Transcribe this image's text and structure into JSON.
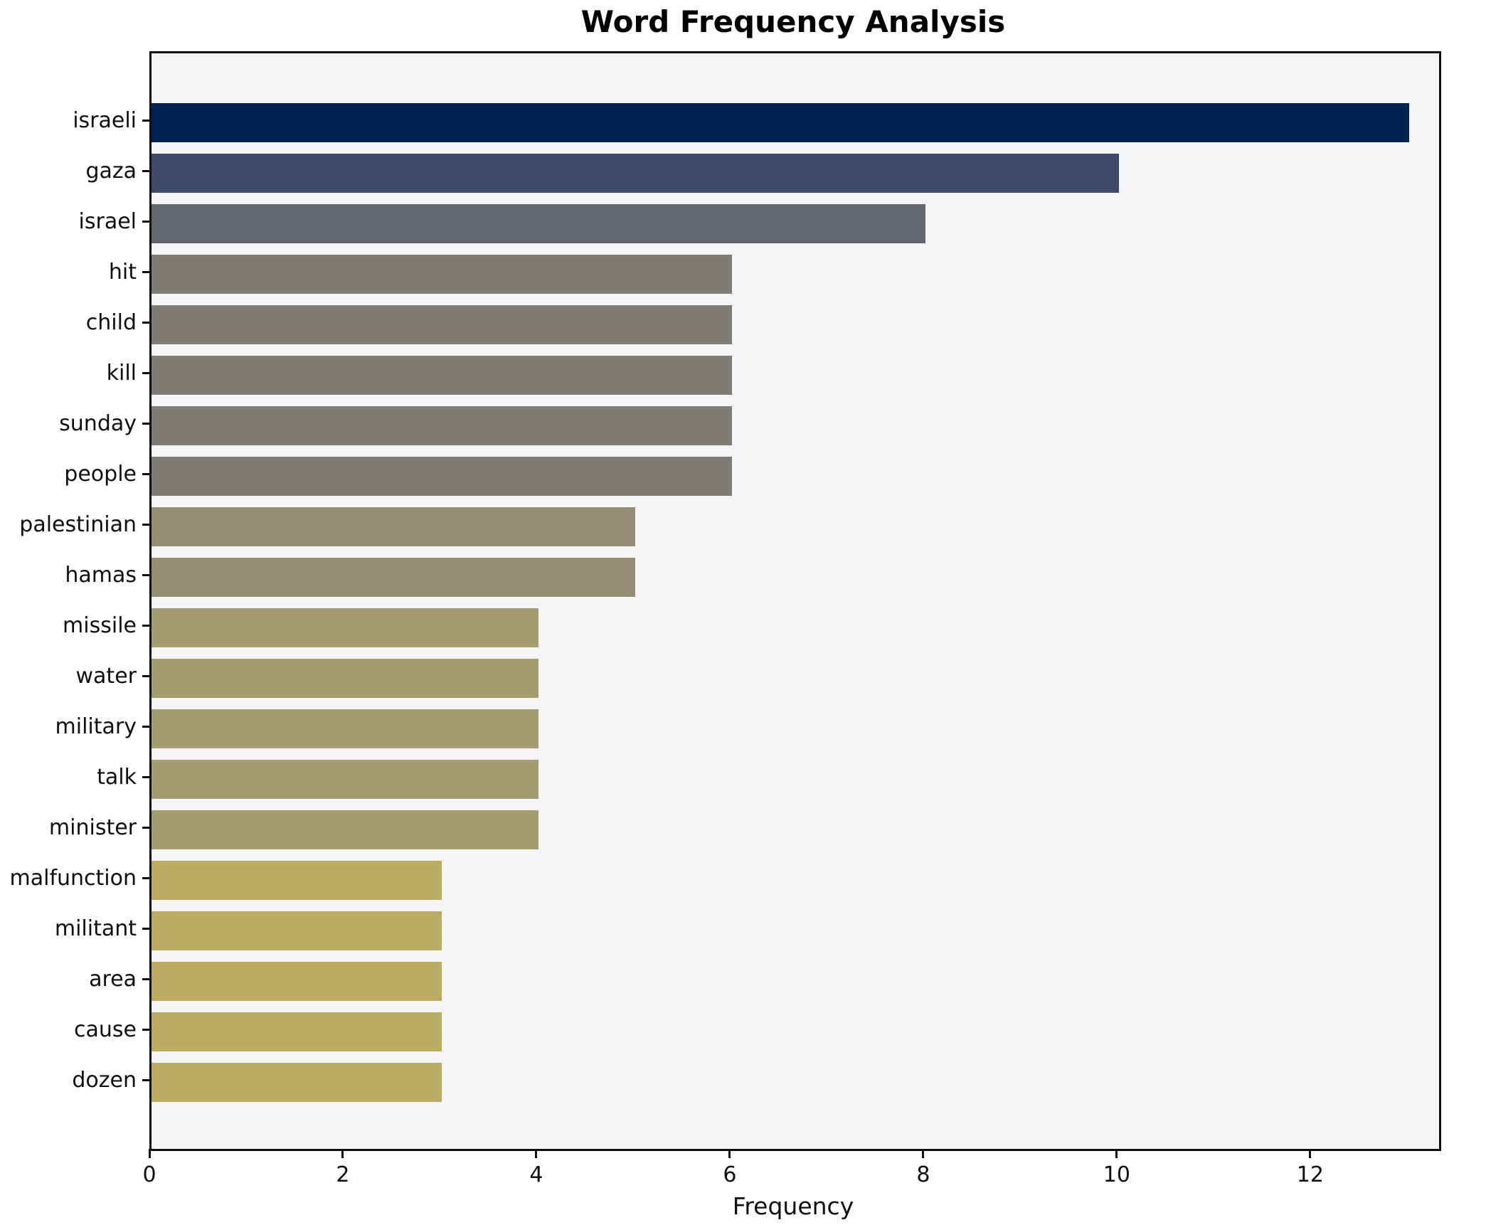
{
  "chart_data": {
    "type": "bar",
    "orientation": "horizontal",
    "title": "Word Frequency Analysis",
    "xlabel": "Frequency",
    "ylabel": "",
    "categories": [
      "israeli",
      "gaza",
      "israel",
      "hit",
      "child",
      "kill",
      "sunday",
      "people",
      "palestinian",
      "hamas",
      "missile",
      "water",
      "military",
      "talk",
      "minister",
      "malfunction",
      "militant",
      "area",
      "cause",
      "dozen"
    ],
    "values": [
      13,
      10,
      8,
      6,
      6,
      6,
      6,
      6,
      5,
      5,
      4,
      4,
      4,
      4,
      4,
      3,
      3,
      3,
      3,
      3
    ],
    "bar_colors": [
      "#002250",
      "#3e4a6c",
      "#63666f",
      "#7f7d73",
      "#7f7d73",
      "#7f7d73",
      "#7f7d73",
      "#7f7d73",
      "#948d73",
      "#948d73",
      "#a69c70",
      "#a69c70",
      "#a69c70",
      "#a69c70",
      "#a69c70",
      "#bcac63",
      "#bcac63",
      "#bcac63",
      "#bcac63",
      "#bcac63"
    ],
    "xticks": [
      0,
      2,
      4,
      6,
      8,
      10,
      12
    ],
    "xlim": [
      0,
      13.31
    ],
    "grid": false,
    "legend": "none",
    "plot_background": "#f5f4f6",
    "figure_background": "#ffffff",
    "spine_color": "#0f0f0f",
    "text_color": "#0f0f0f"
  }
}
